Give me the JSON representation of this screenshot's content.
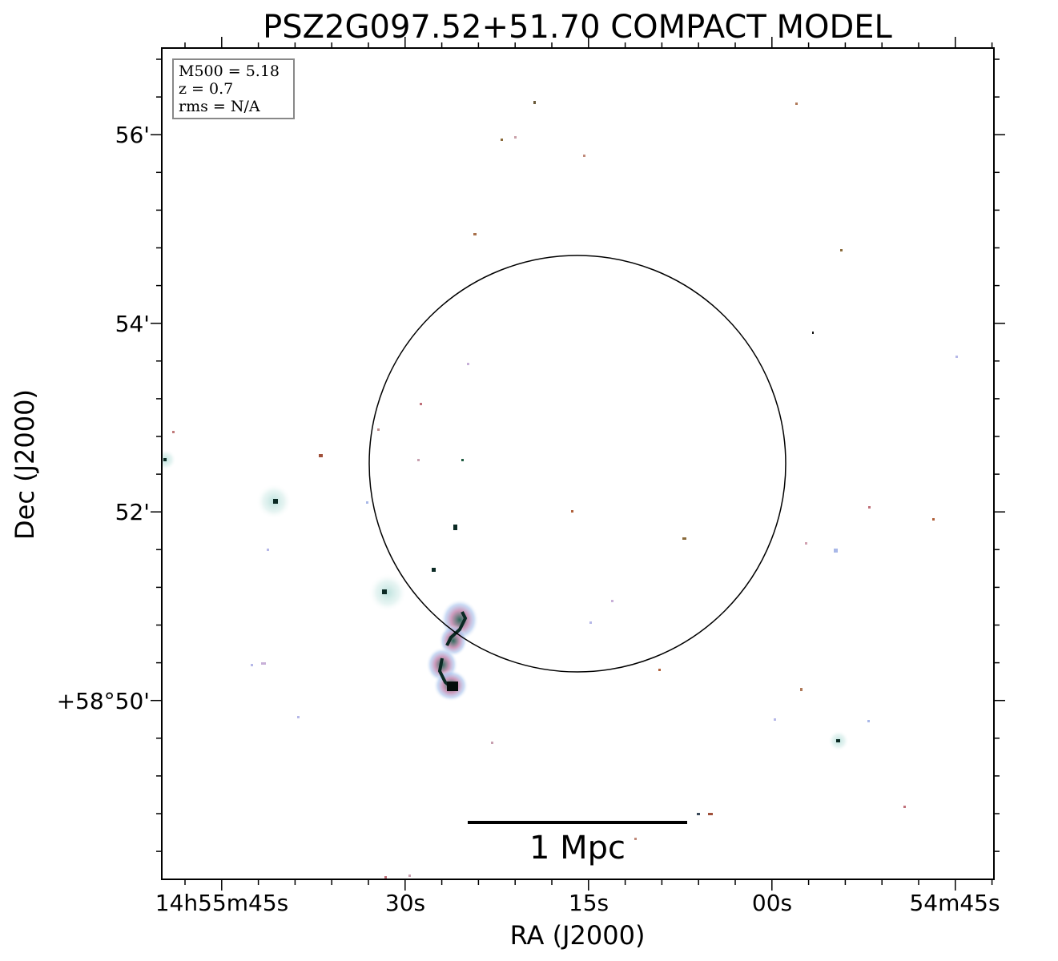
{
  "chart_data": {
    "type": "sky-image",
    "title": "PSZ2G097.52+51.70 COMPACT MODEL",
    "xlabel": "RA (J2000)",
    "ylabel": "Dec (J2000)",
    "x_ticks": [
      "14h55m45s",
      "30s",
      "15s",
      "00s",
      "54m45s"
    ],
    "y_ticks": [
      "56'",
      "54'",
      "52'",
      "+58°50'"
    ],
    "info_box": {
      "line1": "M500 = 5.18",
      "line2": "z = 0.7",
      "line3": "rms = N/A"
    },
    "scale_bar_label": "1 Mpc",
    "colors": {
      "circle": "#000000",
      "frame": "#000000",
      "halo": "#cfe9e6",
      "core": "#0b2a24",
      "pink": "#d9a3c4",
      "blue": "#a9b8e8"
    }
  }
}
